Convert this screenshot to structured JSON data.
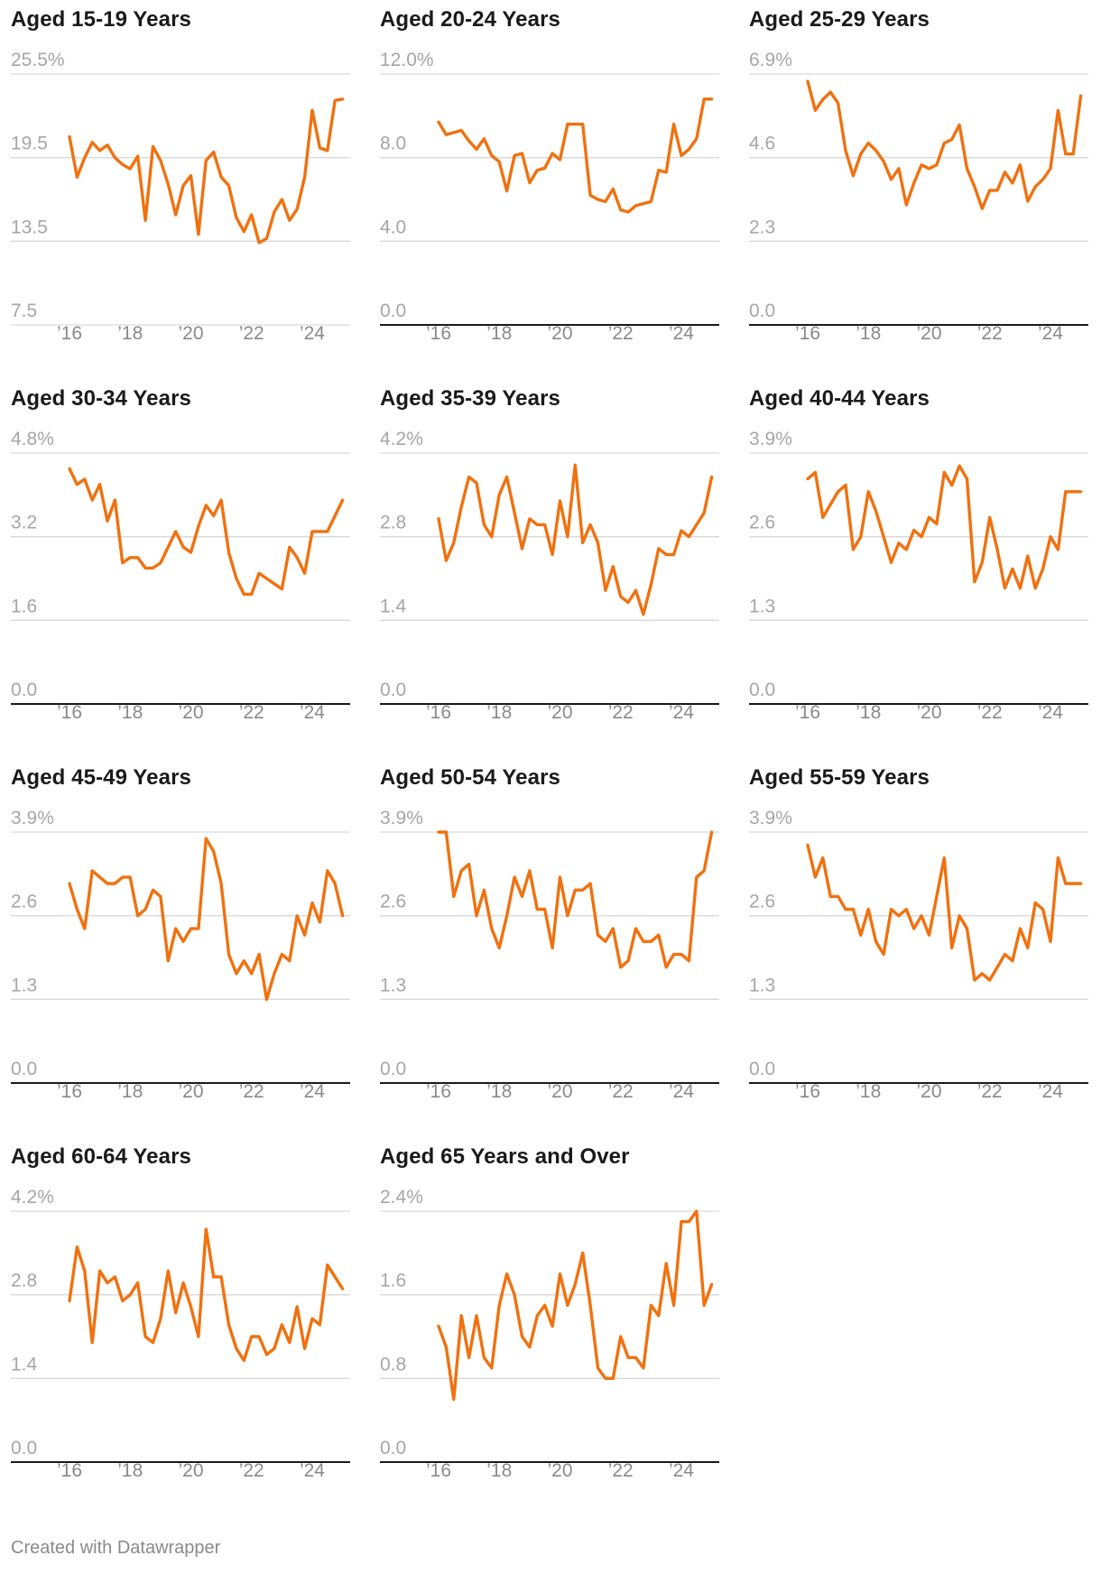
{
  "footer": {
    "credit": "Created with Datawrapper"
  },
  "colors": {
    "line": "#f0710f",
    "grid": "#d9d9d9",
    "baseline": "#1a1a1a"
  },
  "x_tick_labels": [
    "’16",
    "’18",
    "’20",
    "’22",
    "’24"
  ],
  "chart_data": [
    {
      "type": "line",
      "title": "Aged 15-19 Years",
      "x_start": 2016,
      "x_end": 2025.25,
      "step": 0.25,
      "ylim": [
        7.5,
        25.5
      ],
      "y_ticks": [
        25.5,
        19.5,
        13.5,
        7.5
      ],
      "y_tick_labels": [
        "25.5%",
        "19.5",
        "13.5",
        "7.5"
      ],
      "zero_baseline": false,
      "values": [
        21.0,
        18.1,
        19.5,
        20.6,
        20.0,
        20.4,
        19.5,
        19.0,
        18.7,
        19.6,
        15.0,
        20.3,
        19.3,
        17.6,
        15.4,
        17.5,
        18.2,
        14.0,
        19.3,
        19.9,
        18.1,
        17.5,
        15.2,
        14.2,
        15.4,
        13.4,
        13.7,
        15.6,
        16.5,
        15.0,
        15.8,
        18.1,
        22.9,
        20.2,
        20.0,
        23.6,
        23.7
      ]
    },
    {
      "type": "line",
      "title": "Aged 20-24 Years",
      "x_start": 2016,
      "x_end": 2025.25,
      "step": 0.25,
      "ylim": [
        0,
        12.0
      ],
      "y_ticks": [
        12.0,
        8.0,
        4.0,
        0.0
      ],
      "y_tick_labels": [
        "12.0%",
        "8.0",
        "4.0",
        "0.0"
      ],
      "zero_baseline": true,
      "values": [
        9.7,
        9.1,
        9.2,
        9.3,
        8.8,
        8.4,
        8.9,
        8.1,
        7.8,
        6.4,
        8.1,
        8.2,
        6.8,
        7.4,
        7.5,
        8.2,
        7.9,
        9.6,
        9.6,
        9.6,
        6.2,
        6.0,
        5.9,
        6.5,
        5.5,
        5.4,
        5.7,
        5.8,
        5.9,
        7.4,
        7.3,
        9.6,
        8.1,
        8.4,
        8.9,
        10.8,
        10.8
      ]
    },
    {
      "type": "line",
      "title": "Aged 25-29 Years",
      "x_start": 2016,
      "x_end": 2025.25,
      "step": 0.25,
      "ylim": [
        0,
        6.9
      ],
      "y_ticks": [
        6.9,
        4.6,
        2.3,
        0.0
      ],
      "y_tick_labels": [
        "6.9%",
        "4.6",
        "2.3",
        "0.0"
      ],
      "zero_baseline": true,
      "values": [
        6.7,
        5.9,
        6.2,
        6.4,
        6.1,
        4.8,
        4.1,
        4.7,
        5.0,
        4.8,
        4.5,
        4.0,
        4.3,
        3.3,
        3.9,
        4.4,
        4.3,
        4.4,
        5.0,
        5.1,
        5.5,
        4.3,
        3.8,
        3.2,
        3.7,
        3.7,
        4.2,
        3.9,
        4.4,
        3.4,
        3.8,
        4.0,
        4.3,
        5.9,
        4.7,
        4.7,
        6.3
      ]
    },
    {
      "type": "line",
      "title": "Aged 30-34 Years",
      "x_start": 2016,
      "x_end": 2025.25,
      "step": 0.25,
      "ylim": [
        0,
        4.8
      ],
      "y_ticks": [
        4.8,
        3.2,
        1.6,
        0.0
      ],
      "y_tick_labels": [
        "4.8%",
        "3.2",
        "1.6",
        "0.0"
      ],
      "zero_baseline": true,
      "values": [
        4.5,
        4.2,
        4.3,
        3.9,
        4.2,
        3.5,
        3.9,
        2.7,
        2.8,
        2.8,
        2.6,
        2.6,
        2.7,
        3.0,
        3.3,
        3.0,
        2.9,
        3.4,
        3.8,
        3.6,
        3.9,
        2.9,
        2.4,
        2.1,
        2.1,
        2.5,
        2.4,
        2.3,
        2.2,
        3.0,
        2.8,
        2.5,
        3.3,
        3.3,
        3.3,
        3.6,
        3.9
      ]
    },
    {
      "type": "line",
      "title": "Aged 35-39 Years",
      "x_start": 2016,
      "x_end": 2025.25,
      "step": 0.25,
      "ylim": [
        0,
        4.2
      ],
      "y_ticks": [
        4.2,
        2.8,
        1.4,
        0.0
      ],
      "y_tick_labels": [
        "4.2%",
        "2.8",
        "1.4",
        "0.0"
      ],
      "zero_baseline": true,
      "values": [
        3.1,
        2.4,
        2.7,
        3.3,
        3.8,
        3.7,
        3.0,
        2.8,
        3.5,
        3.8,
        3.2,
        2.6,
        3.1,
        3.0,
        3.0,
        2.5,
        3.4,
        2.8,
        4.0,
        2.7,
        3.0,
        2.7,
        1.9,
        2.3,
        1.8,
        1.7,
        1.9,
        1.5,
        2.0,
        2.6,
        2.5,
        2.5,
        2.9,
        2.8,
        3.0,
        3.2,
        3.8
      ]
    },
    {
      "type": "line",
      "title": "Aged 40-44 Years",
      "x_start": 2016,
      "x_end": 2025.25,
      "step": 0.25,
      "ylim": [
        0,
        3.9
      ],
      "y_ticks": [
        3.9,
        2.6,
        1.3,
        0.0
      ],
      "y_tick_labels": [
        "3.9%",
        "2.6",
        "1.3",
        "0.0"
      ],
      "zero_baseline": true,
      "values": [
        3.5,
        3.6,
        2.9,
        3.1,
        3.3,
        3.4,
        2.4,
        2.6,
        3.3,
        3.0,
        2.6,
        2.2,
        2.5,
        2.4,
        2.7,
        2.6,
        2.9,
        2.8,
        3.6,
        3.4,
        3.7,
        3.5,
        1.9,
        2.2,
        2.9,
        2.4,
        1.8,
        2.1,
        1.8,
        2.3,
        1.8,
        2.1,
        2.6,
        2.4,
        3.3,
        3.3,
        3.3
      ]
    },
    {
      "type": "line",
      "title": "Aged 45-49 Years",
      "x_start": 2016,
      "x_end": 2025.25,
      "step": 0.25,
      "ylim": [
        0,
        3.9
      ],
      "y_ticks": [
        3.9,
        2.6,
        1.3,
        0.0
      ],
      "y_tick_labels": [
        "3.9%",
        "2.6",
        "1.3",
        "0.0"
      ],
      "zero_baseline": true,
      "values": [
        3.1,
        2.7,
        2.4,
        3.3,
        3.2,
        3.1,
        3.1,
        3.2,
        3.2,
        2.6,
        2.7,
        3.0,
        2.9,
        1.9,
        2.4,
        2.2,
        2.4,
        2.4,
        3.8,
        3.6,
        3.1,
        2.0,
        1.7,
        1.9,
        1.7,
        2.0,
        1.3,
        1.7,
        2.0,
        1.9,
        2.6,
        2.3,
        2.8,
        2.5,
        3.3,
        3.1,
        2.6
      ]
    },
    {
      "type": "line",
      "title": "Aged 50-54 Years",
      "x_start": 2016,
      "x_end": 2025.25,
      "step": 0.25,
      "ylim": [
        0,
        3.9
      ],
      "y_ticks": [
        3.9,
        2.6,
        1.3,
        0.0
      ],
      "y_tick_labels": [
        "3.9%",
        "2.6",
        "1.3",
        "0.0"
      ],
      "zero_baseline": true,
      "values": [
        3.9,
        3.9,
        2.9,
        3.3,
        3.4,
        2.6,
        3.0,
        2.4,
        2.1,
        2.6,
        3.2,
        2.9,
        3.3,
        2.7,
        2.7,
        2.1,
        3.2,
        2.6,
        3.0,
        3.0,
        3.1,
        2.3,
        2.2,
        2.4,
        1.8,
        1.9,
        2.4,
        2.2,
        2.2,
        2.3,
        1.8,
        2.0,
        2.0,
        1.9,
        3.2,
        3.3,
        3.9
      ]
    },
    {
      "type": "line",
      "title": "Aged 55-59 Years",
      "x_start": 2016,
      "x_end": 2025.25,
      "step": 0.25,
      "ylim": [
        0,
        3.9
      ],
      "y_ticks": [
        3.9,
        2.6,
        1.3,
        0.0
      ],
      "y_tick_labels": [
        "3.9%",
        "2.6",
        "1.3",
        "0.0"
      ],
      "zero_baseline": true,
      "values": [
        3.7,
        3.2,
        3.5,
        2.9,
        2.9,
        2.7,
        2.7,
        2.3,
        2.7,
        2.2,
        2.0,
        2.7,
        2.6,
        2.7,
        2.4,
        2.6,
        2.3,
        2.9,
        3.5,
        2.1,
        2.6,
        2.4,
        1.6,
        1.7,
        1.6,
        1.8,
        2.0,
        1.9,
        2.4,
        2.1,
        2.8,
        2.7,
        2.2,
        3.5,
        3.1,
        3.1,
        3.1
      ]
    },
    {
      "type": "line",
      "title": "Aged 60-64 Years",
      "x_start": 2016,
      "x_end": 2025.25,
      "step": 0.25,
      "ylim": [
        0,
        4.2
      ],
      "y_ticks": [
        4.2,
        2.8,
        1.4,
        0.0
      ],
      "y_tick_labels": [
        "4.2%",
        "2.8",
        "1.4",
        "0.0"
      ],
      "zero_baseline": true,
      "values": [
        2.7,
        3.6,
        3.2,
        2.0,
        3.2,
        3.0,
        3.1,
        2.7,
        2.8,
        3.0,
        2.1,
        2.0,
        2.4,
        3.2,
        2.5,
        3.0,
        2.6,
        2.1,
        3.9,
        3.1,
        3.1,
        2.3,
        1.9,
        1.7,
        2.1,
        2.1,
        1.8,
        1.9,
        2.3,
        2.0,
        2.6,
        1.9,
        2.4,
        2.3,
        3.3,
        3.1,
        2.9
      ]
    },
    {
      "type": "line",
      "title": "Aged 65 Years and Over",
      "x_start": 2016,
      "x_end": 2025.25,
      "step": 0.25,
      "ylim": [
        0,
        2.4
      ],
      "y_ticks": [
        2.4,
        1.6,
        0.8,
        0.0
      ],
      "y_tick_labels": [
        "2.4%",
        "1.6",
        "0.8",
        "0.0"
      ],
      "zero_baseline": true,
      "values": [
        1.3,
        1.1,
        0.6,
        1.4,
        1.0,
        1.4,
        1.0,
        0.9,
        1.5,
        1.8,
        1.6,
        1.2,
        1.1,
        1.4,
        1.5,
        1.3,
        1.8,
        1.5,
        1.7,
        2.0,
        1.5,
        0.9,
        0.8,
        0.8,
        1.2,
        1.0,
        1.0,
        0.9,
        1.5,
        1.4,
        1.9,
        1.5,
        2.3,
        2.3,
        2.4,
        1.5,
        1.7
      ]
    }
  ]
}
